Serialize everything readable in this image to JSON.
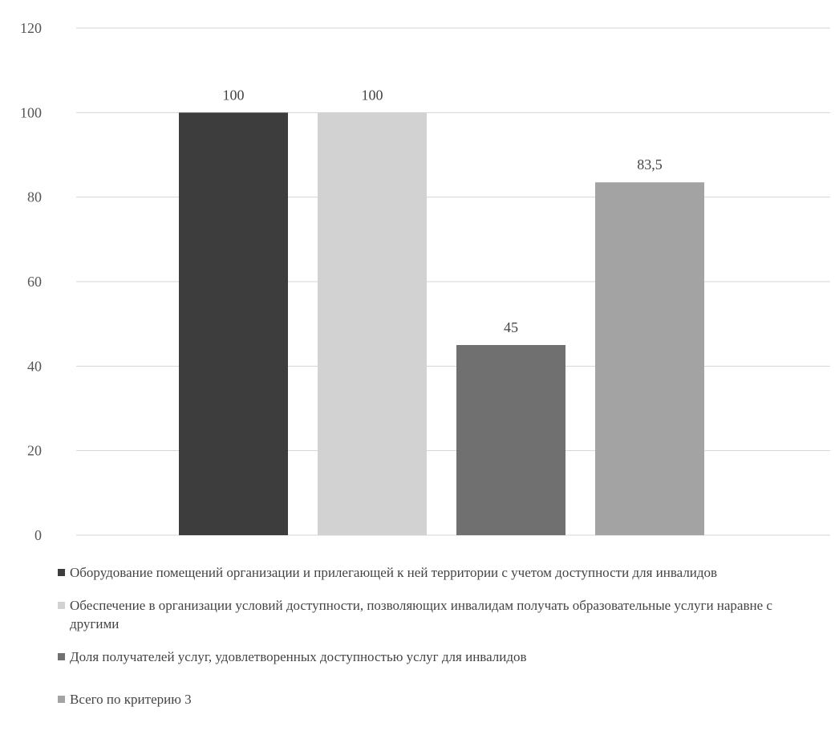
{
  "chart_data": {
    "type": "bar",
    "categories": [
      "Оборудование помещений организации и прилегающей к ней территории с учетом доступности для инвалидов",
      "Обеспечение в организации условий доступности, позволяющих инвалидам получать образовательные услуги наравне с другими",
      "Доля получателей услуг, удовлетворенных доступностью услуг для инвалидов",
      "Всего по критерию 3"
    ],
    "values": [
      100,
      100,
      45,
      83.5
    ],
    "value_labels": [
      "100",
      "100",
      "45",
      "83,5"
    ],
    "colors": [
      "#3d3d3d",
      "#d2d2d2",
      "#707070",
      "#a3a3a3"
    ],
    "ylim": [
      0,
      120
    ],
    "yticks": [
      "0",
      "20",
      "40",
      "60",
      "80",
      "100",
      "120"
    ],
    "grid": true,
    "legend_position": "bottom"
  }
}
